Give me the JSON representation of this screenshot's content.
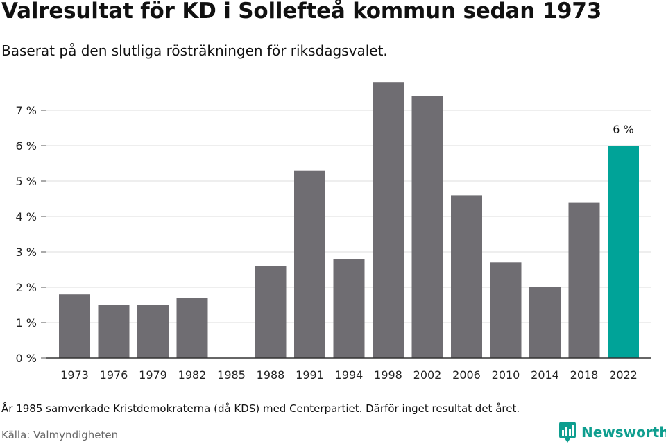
{
  "chart_data": {
    "type": "bar",
    "title": "Valresultat för KD i Sollefteå kommun sedan 1973",
    "subtitle": "Baserat på den slutliga rösträkningen för riksdagsvalet.",
    "xlabel": "",
    "ylabel": "",
    "ylim": [
      0,
      8
    ],
    "yticks": [
      {
        "value": 0,
        "label": "0 %"
      },
      {
        "value": 1,
        "label": "1 %"
      },
      {
        "value": 2,
        "label": "2 %"
      },
      {
        "value": 3,
        "label": "3 %"
      },
      {
        "value": 4,
        "label": "4 %"
      },
      {
        "value": 5,
        "label": "5 %"
      },
      {
        "value": 6,
        "label": "6 %"
      },
      {
        "value": 7,
        "label": "7 %"
      }
    ],
    "grid": true,
    "categories": [
      "1973",
      "1976",
      "1979",
      "1982",
      "1985",
      "1988",
      "1991",
      "1994",
      "1998",
      "2002",
      "2006",
      "2010",
      "2014",
      "2018",
      "2022"
    ],
    "values": [
      1.8,
      1.5,
      1.5,
      1.7,
      null,
      2.6,
      5.3,
      2.8,
      7.8,
      7.4,
      4.6,
      2.7,
      2.0,
      4.4,
      6.0
    ],
    "highlight": {
      "category": "2022",
      "label": "6 %"
    },
    "colors": {
      "bar": "#6f6d72",
      "highlight": "#00a398",
      "grid": "#dddddd",
      "axis": "#333333"
    }
  },
  "footer": {
    "note": "År 1985 samverkade Kristdemokraterna (då KDS) med Centerpartiet. Därför inget resultat det året.",
    "source": "Källa: Valmyndigheten",
    "brand": "Newsworthy",
    "brand_color": "#0e9e8f",
    "brand_icon": "newsworthy-logo-icon"
  }
}
